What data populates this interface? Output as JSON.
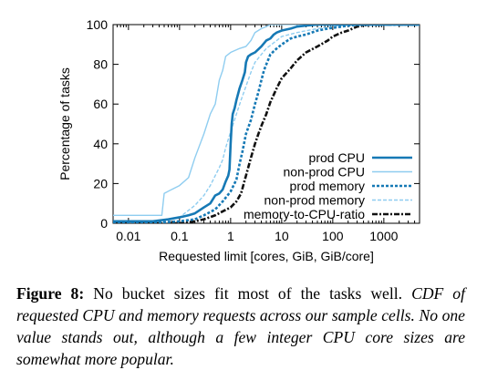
{
  "chart_data": {
    "type": "line",
    "xlabel": "Requested limit [cores, GiB, GiB/core]",
    "ylabel": "Percentage of tasks",
    "x_scale": "log",
    "xlim": [
      0.005,
      5000
    ],
    "ylim": [
      0,
      100
    ],
    "x_ticks": [
      0.01,
      0.1,
      1,
      10,
      100,
      1000
    ],
    "x_tick_labels": [
      "0.01",
      "0.1",
      "1",
      "10",
      "100",
      "1000"
    ],
    "y_ticks": [
      0,
      20,
      40,
      60,
      80,
      100
    ],
    "y_tick_labels": [
      "0",
      "20",
      "40",
      "60",
      "80",
      "100"
    ],
    "grid": false,
    "legend_position": "bottom-right",
    "series": [
      {
        "name": "prod CPU",
        "color": "#1679b5",
        "dash": "solid",
        "width": "thick",
        "points": [
          [
            0.005,
            1
          ],
          [
            0.03,
            1
          ],
          [
            0.06,
            2
          ],
          [
            0.1,
            3
          ],
          [
            0.15,
            4
          ],
          [
            0.2,
            5
          ],
          [
            0.3,
            8
          ],
          [
            0.4,
            10
          ],
          [
            0.5,
            14
          ],
          [
            0.6,
            15
          ],
          [
            0.7,
            17
          ],
          [
            0.8,
            21
          ],
          [
            0.9,
            24
          ],
          [
            0.95,
            27
          ],
          [
            1,
            40
          ],
          [
            1.05,
            50
          ],
          [
            1.1,
            55
          ],
          [
            1.2,
            58
          ],
          [
            1.3,
            62
          ],
          [
            1.5,
            68
          ],
          [
            1.7,
            72
          ],
          [
            1.9,
            76
          ],
          [
            2,
            81
          ],
          [
            2.2,
            84
          ],
          [
            2.5,
            85
          ],
          [
            3,
            86
          ],
          [
            4,
            89
          ],
          [
            5,
            92
          ],
          [
            6,
            93
          ],
          [
            7,
            95
          ],
          [
            8,
            96
          ],
          [
            10,
            97
          ],
          [
            15,
            98
          ],
          [
            20,
            99
          ],
          [
            30,
            99.5
          ],
          [
            50,
            100
          ],
          [
            5000,
            100
          ]
        ]
      },
      {
        "name": "non-prod CPU",
        "color": "#8fcdf0",
        "dash": "solid",
        "width": "thin",
        "points": [
          [
            0.005,
            4
          ],
          [
            0.045,
            4
          ],
          [
            0.05,
            15
          ],
          [
            0.07,
            17
          ],
          [
            0.1,
            19
          ],
          [
            0.15,
            23
          ],
          [
            0.2,
            33
          ],
          [
            0.3,
            45
          ],
          [
            0.4,
            55
          ],
          [
            0.5,
            60
          ],
          [
            0.6,
            72
          ],
          [
            0.7,
            77
          ],
          [
            0.8,
            84
          ],
          [
            1,
            86
          ],
          [
            1.5,
            88
          ],
          [
            2,
            89
          ],
          [
            2.5,
            92
          ],
          [
            3,
            96
          ],
          [
            4,
            98
          ],
          [
            5,
            99
          ],
          [
            6,
            100
          ],
          [
            5000,
            100
          ]
        ]
      },
      {
        "name": "prod memory",
        "color": "#1679b5",
        "dash": "dotted",
        "width": "thick",
        "points": [
          [
            0.005,
            0.5
          ],
          [
            0.05,
            0.5
          ],
          [
            0.1,
            1
          ],
          [
            0.2,
            2
          ],
          [
            0.3,
            4
          ],
          [
            0.5,
            7
          ],
          [
            0.7,
            11
          ],
          [
            1,
            16
          ],
          [
            1.3,
            22
          ],
          [
            1.5,
            30
          ],
          [
            1.7,
            36
          ],
          [
            2,
            45
          ],
          [
            2.5,
            52
          ],
          [
            3,
            60
          ],
          [
            3.5,
            66
          ],
          [
            4,
            72
          ],
          [
            4.5,
            77
          ],
          [
            5,
            80
          ],
          [
            6,
            85
          ],
          [
            8,
            88
          ],
          [
            10,
            90
          ],
          [
            15,
            93
          ],
          [
            20,
            94
          ],
          [
            30,
            95
          ],
          [
            50,
            97
          ],
          [
            80,
            98
          ],
          [
            150,
            99
          ],
          [
            300,
            100
          ],
          [
            5000,
            100
          ]
        ]
      },
      {
        "name": "non-prod memory",
        "color": "#8fcdf0",
        "dash": "dashed",
        "width": "thin",
        "points": [
          [
            0.005,
            0.5
          ],
          [
            0.02,
            0.5
          ],
          [
            0.05,
            1
          ],
          [
            0.1,
            3
          ],
          [
            0.2,
            9
          ],
          [
            0.3,
            14
          ],
          [
            0.4,
            19
          ],
          [
            0.5,
            24
          ],
          [
            0.6,
            28
          ],
          [
            0.7,
            32
          ],
          [
            0.8,
            38
          ],
          [
            1,
            46
          ],
          [
            1.3,
            55
          ],
          [
            1.6,
            62
          ],
          [
            2,
            69
          ],
          [
            2.5,
            76
          ],
          [
            3,
            81
          ],
          [
            4,
            85
          ],
          [
            5,
            88
          ],
          [
            8,
            92
          ],
          [
            10,
            94
          ],
          [
            20,
            96
          ],
          [
            50,
            98
          ],
          [
            100,
            99
          ],
          [
            200,
            100
          ],
          [
            5000,
            100
          ]
        ]
      },
      {
        "name": "memory-to-CPU-ratio",
        "color": "#111111",
        "dash": "dashdot",
        "width": "thick",
        "points": [
          [
            0.005,
            0
          ],
          [
            0.1,
            0
          ],
          [
            0.2,
            1
          ],
          [
            0.3,
            2
          ],
          [
            0.5,
            4
          ],
          [
            0.7,
            6
          ],
          [
            1,
            8
          ],
          [
            1.3,
            11
          ],
          [
            1.6,
            15
          ],
          [
            2,
            24
          ],
          [
            2.5,
            33
          ],
          [
            3,
            40
          ],
          [
            3.5,
            45
          ],
          [
            4,
            49
          ],
          [
            5,
            55
          ],
          [
            6,
            61
          ],
          [
            8,
            68
          ],
          [
            10,
            73
          ],
          [
            15,
            78
          ],
          [
            20,
            82
          ],
          [
            30,
            86
          ],
          [
            50,
            89
          ],
          [
            80,
            92
          ],
          [
            100,
            94
          ],
          [
            150,
            96
          ],
          [
            200,
            97
          ],
          [
            300,
            99
          ],
          [
            500,
            100
          ],
          [
            5000,
            100
          ]
        ]
      }
    ]
  },
  "caption": {
    "label": "Figure 8:",
    "text": " No bucket sizes fit most of the tasks well. ",
    "italic": "CDF of requested CPU and memory requests across our sample cells. No one value stands out, although a few integer CPU core sizes are somewhat more popular."
  }
}
